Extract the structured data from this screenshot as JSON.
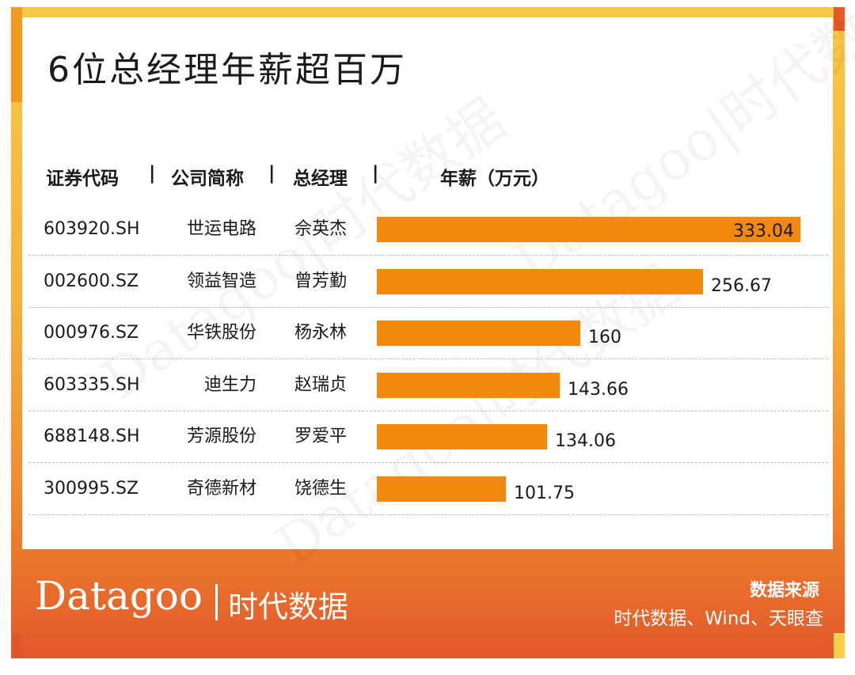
{
  "title": "6位总经理年薪超百万",
  "headers": {
    "code": "证券代码",
    "company": "公司简称",
    "gm": "总经理",
    "salary": "年薪（万元）"
  },
  "watermark": "Datagoo|时代数据",
  "brand": {
    "logo_en": "Datagoo",
    "logo_cn": "时代数据"
  },
  "source": {
    "title": "数据来源",
    "text": "时代数据、Wind、天眼查"
  },
  "colors": {
    "bar": "#f18a0c",
    "accent": "#e8582a"
  },
  "chart_data": {
    "type": "bar",
    "orientation": "horizontal",
    "categories": [
      "世运电路",
      "领益智造",
      "华铁股份",
      "迪生力",
      "芳源股份",
      "奇德新材"
    ],
    "codes": [
      "603920.SH",
      "002600.SZ",
      "000976.SZ",
      "603335.SH",
      "688148.SH",
      "300995.SZ"
    ],
    "managers": [
      "佘英杰",
      "曾芳勤",
      "杨永林",
      "赵瑞贞",
      "罗爱平",
      "饶德生"
    ],
    "values": [
      333.04,
      256.67,
      160,
      143.66,
      134.06,
      101.75
    ],
    "value_labels": [
      "333.04",
      "256.67",
      "160",
      "143.66",
      "134.06",
      "101.75"
    ],
    "title": "6位总经理年薪超百万",
    "xlabel": "年薪（万元）",
    "ylabel": "",
    "xlim": [
      0,
      333.04
    ]
  }
}
